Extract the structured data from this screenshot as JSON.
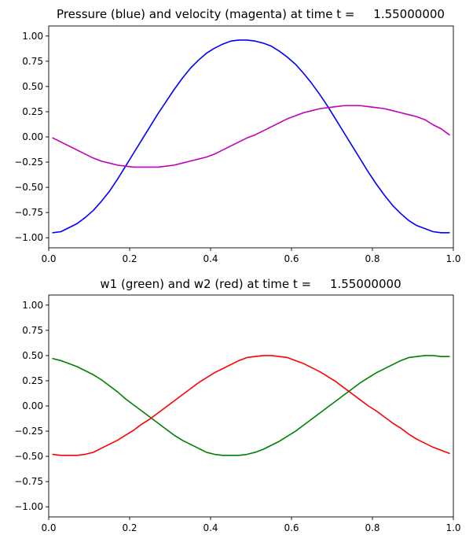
{
  "chart_data": [
    {
      "type": "line",
      "title": "Pressure (blue) and velocity (magenta) at time t =     1.55000000",
      "xlabel": "",
      "ylabel": "",
      "xlim": [
        0,
        1
      ],
      "ylim": [
        -1.1,
        1.1
      ],
      "xticks": [
        "0.0",
        "0.2",
        "0.4",
        "0.6",
        "0.8",
        "1.0"
      ],
      "yticks": [
        "1.00",
        "0.75",
        "0.50",
        "0.25",
        "0.00",
        "−0.25",
        "−0.50",
        "−0.75",
        "−1.00"
      ],
      "grid": false,
      "series": [
        {
          "color": "#0000ff",
          "x": [
            0.01,
            0.03,
            0.05,
            0.07,
            0.09,
            0.11,
            0.13,
            0.15,
            0.17,
            0.19,
            0.21,
            0.23,
            0.25,
            0.27,
            0.29,
            0.31,
            0.33,
            0.35,
            0.37,
            0.39,
            0.41,
            0.43,
            0.45,
            0.47,
            0.49,
            0.51,
            0.53,
            0.55,
            0.57,
            0.59,
            0.61,
            0.63,
            0.65,
            0.67,
            0.69,
            0.71,
            0.73,
            0.75,
            0.77,
            0.79,
            0.81,
            0.83,
            0.85,
            0.87,
            0.89,
            0.91,
            0.93,
            0.95,
            0.97,
            0.99
          ],
          "y": [
            -0.95,
            -0.94,
            -0.9,
            -0.86,
            -0.8,
            -0.73,
            -0.64,
            -0.54,
            -0.42,
            -0.29,
            -0.16,
            -0.03,
            0.1,
            0.23,
            0.35,
            0.47,
            0.58,
            0.68,
            0.76,
            0.83,
            0.88,
            0.92,
            0.95,
            0.96,
            0.96,
            0.95,
            0.93,
            0.9,
            0.85,
            0.79,
            0.72,
            0.63,
            0.53,
            0.42,
            0.3,
            0.17,
            0.04,
            -0.09,
            -0.22,
            -0.35,
            -0.47,
            -0.58,
            -0.68,
            -0.76,
            -0.83,
            -0.88,
            -0.91,
            -0.94,
            -0.95,
            -0.95
          ]
        },
        {
          "color": "#bf00bf",
          "x": [
            0.01,
            0.03,
            0.05,
            0.07,
            0.09,
            0.11,
            0.13,
            0.15,
            0.17,
            0.19,
            0.21,
            0.23,
            0.25,
            0.27,
            0.29,
            0.31,
            0.33,
            0.35,
            0.37,
            0.39,
            0.41,
            0.43,
            0.45,
            0.47,
            0.49,
            0.51,
            0.53,
            0.55,
            0.57,
            0.59,
            0.61,
            0.63,
            0.65,
            0.67,
            0.69,
            0.71,
            0.73,
            0.75,
            0.77,
            0.79,
            0.81,
            0.83,
            0.85,
            0.87,
            0.89,
            0.91,
            0.93,
            0.95,
            0.97,
            0.99
          ],
          "y": [
            -0.01,
            -0.05,
            -0.09,
            -0.13,
            -0.17,
            -0.21,
            -0.24,
            -0.26,
            -0.28,
            -0.29,
            -0.3,
            -0.3,
            -0.3,
            -0.3,
            -0.29,
            -0.28,
            -0.26,
            -0.24,
            -0.22,
            -0.2,
            -0.17,
            -0.13,
            -0.09,
            -0.05,
            -0.01,
            0.02,
            0.06,
            0.1,
            0.14,
            0.18,
            0.21,
            0.24,
            0.26,
            0.28,
            0.29,
            0.3,
            0.31,
            0.31,
            0.31,
            0.3,
            0.29,
            0.28,
            0.26,
            0.24,
            0.22,
            0.2,
            0.17,
            0.12,
            0.08,
            0.02
          ]
        }
      ]
    },
    {
      "type": "line",
      "title": "w1 (green) and w2 (red) at time t =     1.55000000",
      "xlabel": "",
      "ylabel": "",
      "xlim": [
        0,
        1
      ],
      "ylim": [
        -1.1,
        1.1
      ],
      "xticks": [
        "0.0",
        "0.2",
        "0.4",
        "0.6",
        "0.8",
        "1.0"
      ],
      "yticks": [
        "1.00",
        "0.75",
        "0.50",
        "0.25",
        "0.00",
        "−0.25",
        "−0.50",
        "−0.75",
        "−1.00"
      ],
      "grid": false,
      "series": [
        {
          "color": "#008000",
          "x": [
            0.01,
            0.03,
            0.05,
            0.07,
            0.09,
            0.11,
            0.13,
            0.15,
            0.17,
            0.19,
            0.21,
            0.23,
            0.25,
            0.27,
            0.29,
            0.31,
            0.33,
            0.35,
            0.37,
            0.39,
            0.41,
            0.43,
            0.45,
            0.47,
            0.49,
            0.51,
            0.53,
            0.55,
            0.57,
            0.59,
            0.61,
            0.63,
            0.65,
            0.67,
            0.69,
            0.71,
            0.73,
            0.75,
            0.77,
            0.79,
            0.81,
            0.83,
            0.85,
            0.87,
            0.89,
            0.91,
            0.93,
            0.95,
            0.97,
            0.99
          ],
          "y": [
            0.47,
            0.45,
            0.42,
            0.39,
            0.35,
            0.31,
            0.26,
            0.2,
            0.14,
            0.07,
            0.01,
            -0.05,
            -0.11,
            -0.17,
            -0.23,
            -0.29,
            -0.34,
            -0.38,
            -0.42,
            -0.46,
            -0.48,
            -0.49,
            -0.49,
            -0.49,
            -0.48,
            -0.46,
            -0.43,
            -0.39,
            -0.35,
            -0.3,
            -0.25,
            -0.19,
            -0.13,
            -0.07,
            -0.01,
            0.05,
            0.11,
            0.17,
            0.23,
            0.28,
            0.33,
            0.37,
            0.41,
            0.45,
            0.48,
            0.49,
            0.5,
            0.5,
            0.49,
            0.49
          ]
        },
        {
          "color": "#ff0000",
          "x": [
            0.01,
            0.03,
            0.05,
            0.07,
            0.09,
            0.11,
            0.13,
            0.15,
            0.17,
            0.19,
            0.21,
            0.23,
            0.25,
            0.27,
            0.29,
            0.31,
            0.33,
            0.35,
            0.37,
            0.39,
            0.41,
            0.43,
            0.45,
            0.47,
            0.49,
            0.51,
            0.53,
            0.55,
            0.57,
            0.59,
            0.61,
            0.63,
            0.65,
            0.67,
            0.69,
            0.71,
            0.73,
            0.75,
            0.77,
            0.79,
            0.81,
            0.83,
            0.85,
            0.87,
            0.89,
            0.91,
            0.93,
            0.95,
            0.97,
            0.99
          ],
          "y": [
            -0.48,
            -0.49,
            -0.49,
            -0.49,
            -0.48,
            -0.46,
            -0.42,
            -0.38,
            -0.34,
            -0.29,
            -0.24,
            -0.18,
            -0.13,
            -0.07,
            -0.01,
            0.05,
            0.11,
            0.17,
            0.23,
            0.28,
            0.33,
            0.37,
            0.41,
            0.45,
            0.48,
            0.49,
            0.5,
            0.5,
            0.49,
            0.48,
            0.45,
            0.42,
            0.38,
            0.34,
            0.29,
            0.24,
            0.18,
            0.12,
            0.06,
            0.0,
            -0.05,
            -0.11,
            -0.17,
            -0.22,
            -0.28,
            -0.33,
            -0.37,
            -0.41,
            -0.44,
            -0.47
          ]
        }
      ]
    }
  ]
}
